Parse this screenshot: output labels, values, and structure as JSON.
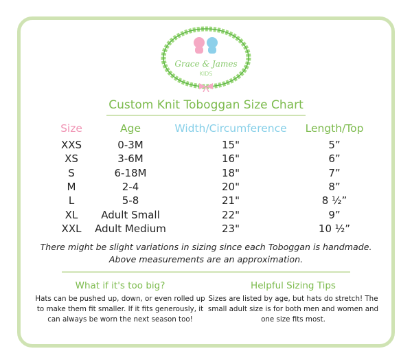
{
  "logo": {
    "text": "Grace & James",
    "subtext": "KIDS"
  },
  "title": "Custom Knit Toboggan Size Chart",
  "colors": {
    "size": "#f094b4",
    "age": "#7dbb4e",
    "width": "#86cfe8",
    "length": "#7dbb4e",
    "border": "#cfe3b3"
  },
  "table": {
    "headers": [
      "Size",
      "Age",
      "Width/Circumference",
      "Length/Top"
    ],
    "rows": [
      [
        "XXS",
        "0-3M",
        "15\"",
        "5”"
      ],
      [
        "XS",
        "3-6M",
        "16\"",
        "6”"
      ],
      [
        "S",
        "6-18M",
        "18\"",
        "7”"
      ],
      [
        "M",
        "2-4",
        "20\"",
        "8”"
      ],
      [
        "L",
        "5-8",
        "21\"",
        "8 ½”"
      ],
      [
        "XL",
        "Adult Small",
        "22\"",
        "9”"
      ],
      [
        "XXL",
        "Adult Medium",
        "23\"",
        "10 ½”"
      ]
    ]
  },
  "note": {
    "line1": "There might be slight variations in sizing since each Toboggan is handmade.",
    "line2": "Above measurements are an approximation."
  },
  "tips": [
    {
      "heading": "What if it's too big?",
      "body": "Hats can be pushed up, down, or even rolled up to make them fit smaller. If it fits generously, it can always be worn the next season too!"
    },
    {
      "heading": "Helpful Sizing Tips",
      "body": "Sizes are listed by age, but hats do stretch! The small adult size is for both men and women and one size fits most."
    }
  ]
}
